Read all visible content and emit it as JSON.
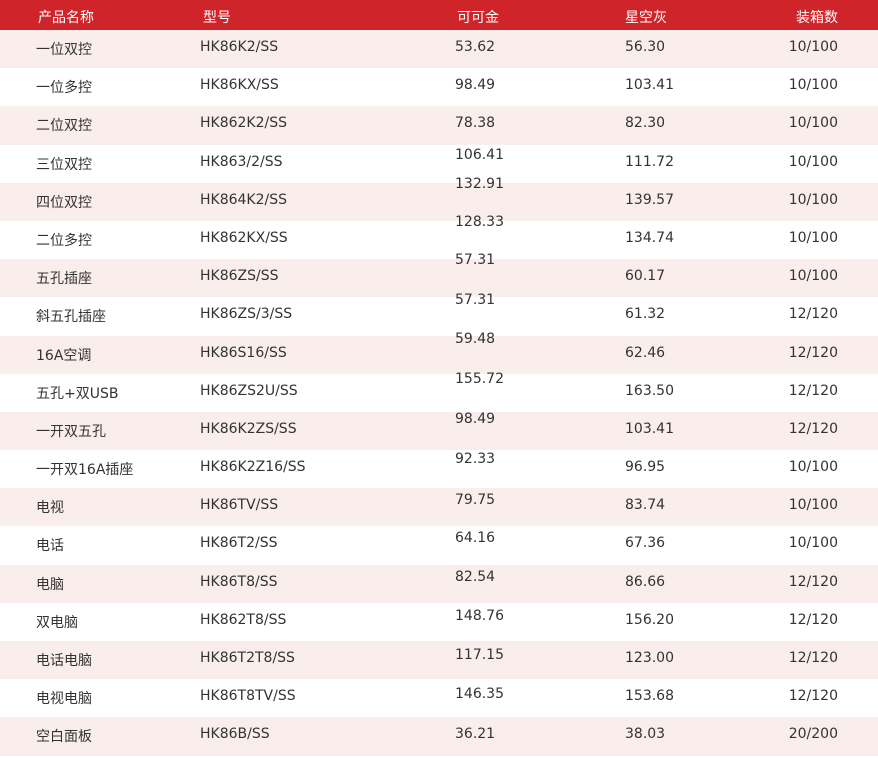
{
  "header": [
    "产品名称",
    "型号",
    "可可金",
    "星空灰",
    "装箱数"
  ],
  "accent_color": "#d0242b",
  "rows": [
    [
      "一位双控",
      "HK86K2/SS",
      "53.62",
      "56.30",
      "10/100"
    ],
    [
      "一位多控",
      "HK86KX/SS",
      "98.49",
      "103.41",
      "10/100"
    ],
    [
      "二位双控",
      "HK862K2/SS",
      "78.38",
      "82.30",
      "10/100"
    ],
    [
      "三位双控",
      "HK863/2/SS",
      "106.41",
      "111.72",
      "10/100"
    ],
    [
      "四位双控",
      "HK864K2/SS",
      "132.91",
      "139.57",
      "10/100"
    ],
    [
      "二位多控",
      "HK862KX/SS",
      "128.33",
      "134.74",
      "10/100"
    ],
    [
      "五孔插座",
      "HK86ZS/SS",
      "57.31",
      "60.17",
      "10/100"
    ],
    [
      "斜五孔插座",
      "HK86ZS/3/SS",
      "57.31",
      "61.32",
      "12/120"
    ],
    [
      "16A空调",
      "HK86S16/SS",
      "59.48",
      "62.46",
      "12/120"
    ],
    [
      "五孔+双USB",
      "HK86ZS2U/SS",
      "155.72",
      "163.50",
      "12/120"
    ],
    [
      "一开双五孔",
      "HK86K2ZS/SS",
      "98.49",
      "103.41",
      "12/120"
    ],
    [
      "一开双16A插座",
      "HK86K2Z16/SS",
      "92.33",
      "96.95",
      "10/100"
    ],
    [
      "电视",
      "HK86TV/SS",
      "79.75",
      "83.74",
      "10/100"
    ],
    [
      "电话",
      "HK86T2/SS",
      "64.16",
      "67.36",
      "10/100"
    ],
    [
      "电脑",
      "HK86T8/SS",
      "82.54",
      "86.66",
      "12/120"
    ],
    [
      "双电脑",
      "HK862T8/SS",
      "148.76",
      "156.20",
      "12/120"
    ],
    [
      "电话电脑",
      "HK86T2T8/SS",
      "117.15",
      "123.00",
      "12/120"
    ],
    [
      "电视电脑",
      "HK86T8TV/SS",
      "146.35",
      "153.68",
      "12/120"
    ],
    [
      "空白面板",
      "HK86B/SS",
      "36.21",
      "38.03",
      "20/200"
    ]
  ]
}
